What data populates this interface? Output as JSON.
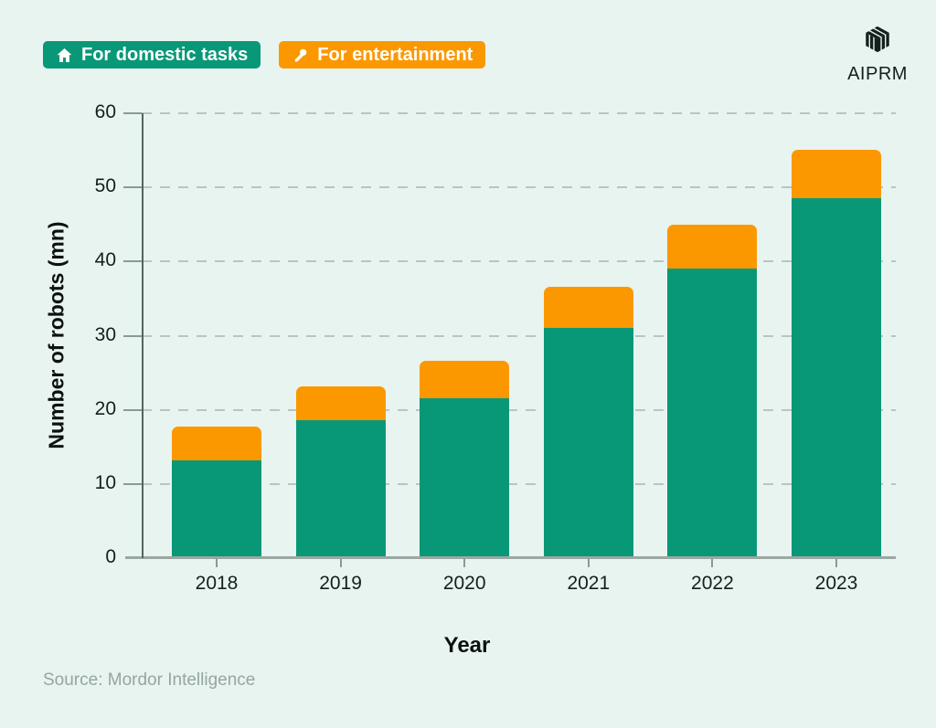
{
  "legend": {
    "items": [
      {
        "label": "For domestic tasks",
        "icon": "house-icon",
        "color": "#099877"
      },
      {
        "label": "For entertainment",
        "icon": "microphone-icon",
        "color": "#fb9800"
      }
    ]
  },
  "logo": {
    "text": "AIPRM"
  },
  "source": {
    "text": "Source: Mordor Intelligence"
  },
  "chart_data": {
    "type": "bar",
    "stacked": true,
    "title": "",
    "categories": [
      "2018",
      "2019",
      "2020",
      "2021",
      "2022",
      "2023"
    ],
    "series": [
      {
        "name": "For domestic tasks",
        "color": "#099877",
        "values": [
          13.2,
          18.6,
          21.6,
          31.1,
          39.1,
          48.6
        ]
      },
      {
        "name": "For entertainment",
        "color": "#fb9800",
        "values": [
          4.5,
          4.6,
          5.0,
          5.5,
          5.9,
          6.5
        ]
      }
    ],
    "totals": [
      17.7,
      23.2,
      26.6,
      36.6,
      45.0,
      55.1
    ],
    "xlabel": "Year",
    "ylabel": "Number of robots (mn)",
    "ylim": [
      0,
      60
    ],
    "ytick_step": 10,
    "yticks": [
      0,
      10,
      20,
      30,
      40,
      50,
      60
    ],
    "grid": "horizontal-dashed",
    "legend_position": "top-left",
    "background": "#e8f4ef"
  }
}
